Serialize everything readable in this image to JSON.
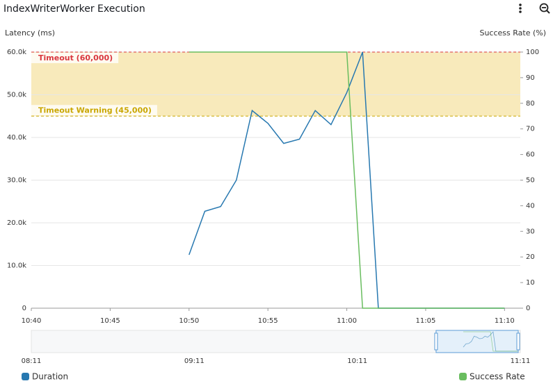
{
  "chart_data": {
    "type": "line",
    "title": "IndexWriterWorker Execution",
    "y_label": "Latency (ms)",
    "y2_label": "Success Rate (%)",
    "x": [
      "10:50",
      "10:51",
      "10:52",
      "10:53",
      "10:54",
      "10:55",
      "10:56",
      "10:57",
      "10:58",
      "10:59",
      "11:00",
      "11:01",
      "11:02",
      "11:03",
      "11:04",
      "11:05",
      "11:06",
      "11:07",
      "11:08",
      "11:09",
      "11:10"
    ],
    "series": [
      {
        "name": "Duration",
        "color": "#2778b0",
        "values": [
          12500,
          22700,
          23800,
          30000,
          46300,
          43300,
          38600,
          39600,
          46300,
          43000,
          50500,
          60000,
          0,
          0,
          0,
          0,
          0,
          0,
          0,
          0,
          0
        ]
      },
      {
        "name": "Success Rate",
        "color": "#69bd5f",
        "axis": "y2",
        "values": [
          100,
          100,
          100,
          100,
          100,
          100,
          100,
          100,
          100,
          100,
          100,
          0,
          0,
          0,
          0,
          0,
          0,
          0,
          0,
          0,
          0
        ]
      }
    ],
    "xlim": [
      "10:40",
      "11:11"
    ],
    "xticks": [
      "10:40",
      "10:45",
      "10:50",
      "10:55",
      "11:00",
      "11:05",
      "11:10"
    ],
    "ylim": [
      0,
      60000
    ],
    "yticks": [
      0,
      {
        "value": 10000,
        "label": "10.0k"
      },
      {
        "value": 20000,
        "label": "20.0k"
      },
      {
        "value": 30000,
        "label": "30.0k"
      },
      {
        "value": 40000,
        "label": "40.0k"
      },
      {
        "value": 50000,
        "label": "50.0k"
      },
      {
        "value": 60000,
        "label": "60.0k"
      }
    ],
    "y2lim": [
      0,
      100
    ],
    "y2ticks": [
      0,
      10,
      20,
      30,
      40,
      50,
      60,
      70,
      80,
      90,
      100
    ],
    "grid": true,
    "annotations": [
      {
        "label": "Timeout (60,000)",
        "value": 60000,
        "color": "#d9363e"
      },
      {
        "label": "Timeout Warning (45,000)",
        "value": 45000,
        "color": "#c9a600"
      }
    ],
    "band_color": "#f8eabb",
    "navigator": {
      "xlim": [
        "08:11",
        "11:11"
      ],
      "xticks": [
        "08:11",
        "09:11",
        "10:11",
        "11:11"
      ]
    },
    "legend": "bottom"
  }
}
